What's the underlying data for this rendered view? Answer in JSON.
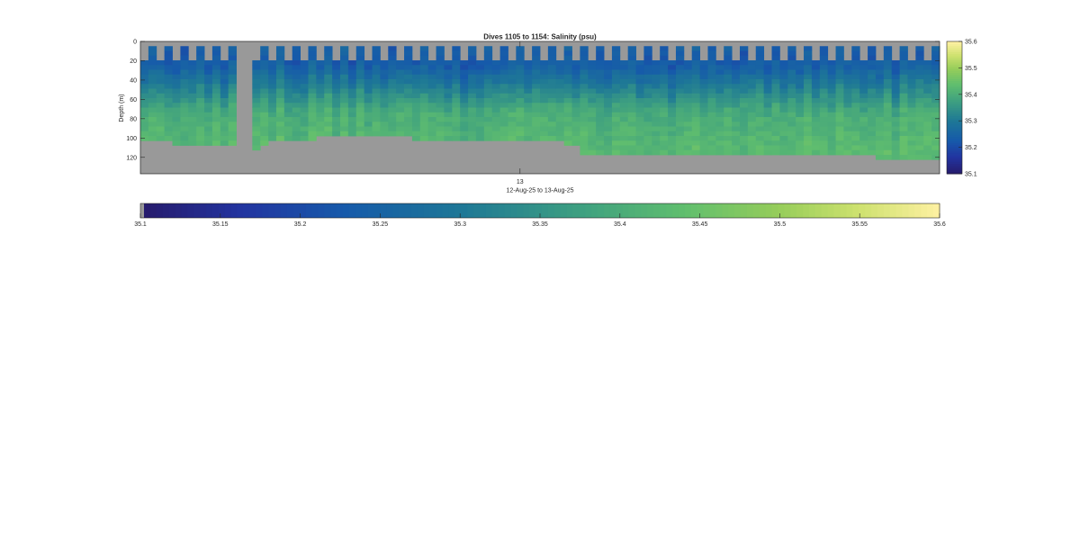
{
  "chart_data": {
    "type": "heatmap",
    "title": "Dives 1105 to 1154: Salinity (psu)",
    "ylabel": "Depth (m)",
    "xlabel": "12-Aug-25 to 13-Aug-25",
    "x_tick_labels": [
      "13"
    ],
    "y_tick_labels": [
      "0",
      "20",
      "40",
      "60",
      "80",
      "100",
      "120"
    ],
    "y_ticks": [
      0,
      20,
      40,
      60,
      80,
      100,
      120
    ],
    "ylim": [
      0,
      137
    ],
    "y_reversed": true,
    "x_cells": 100,
    "cell_depth_m": 5,
    "gap_cells": [
      12,
      13
    ],
    "colorbar": {
      "range": [
        35.1,
        35.6
      ],
      "ticks": [
        "35.1",
        "35.2",
        "35.3",
        "35.4",
        "35.5",
        "35.6"
      ],
      "colormap": "parula"
    },
    "colorbar_horizontal": {
      "ticks": [
        "35.1",
        "35.15",
        "35.2",
        "35.25",
        "35.3",
        "35.35",
        "35.4",
        "35.45",
        "35.5",
        "35.55",
        "35.6"
      ]
    },
    "nan_color": "#999999",
    "bottom_depth_m": [
      105,
      105,
      105,
      107,
      108,
      108,
      108,
      108,
      108,
      108,
      108,
      108,
      113,
      113,
      113,
      112,
      104,
      104,
      104,
      104,
      104,
      104,
      102,
      102,
      102,
      102,
      101,
      101,
      101,
      101,
      101,
      101,
      101,
      101,
      103,
      103,
      103,
      103,
      103,
      103,
      103,
      103,
      104,
      104,
      104,
      104,
      104,
      104,
      104,
      104,
      104,
      104,
      104,
      110,
      110,
      121,
      121,
      121,
      118,
      118,
      118,
      121,
      121,
      121,
      121,
      121,
      121,
      121,
      121,
      121,
      121,
      121,
      121,
      121,
      121,
      121,
      121,
      121,
      121,
      121,
      121,
      121,
      121,
      121,
      121,
      121,
      121,
      121,
      121,
      121,
      121,
      121,
      125,
      125,
      124,
      124,
      124,
      124,
      124,
      124
    ],
    "surface_top_m": [
      18,
      5,
      18,
      5,
      18,
      5,
      18,
      5,
      18,
      5,
      18,
      5,
      18,
      5,
      18,
      5,
      18,
      5,
      18,
      5,
      18,
      5,
      18,
      5,
      18,
      5,
      18,
      5,
      18,
      5,
      18,
      5,
      18,
      5,
      18,
      5,
      18,
      5,
      18,
      5,
      18,
      5,
      18,
      5,
      18,
      5,
      18,
      5,
      18,
      5,
      18,
      5,
      18,
      5,
      18,
      5,
      18,
      5,
      18,
      5,
      18,
      5,
      18,
      5,
      18,
      5,
      18,
      5,
      18,
      5,
      18,
      5,
      18,
      5,
      18,
      5,
      18,
      5,
      18,
      5,
      18,
      5,
      18,
      5,
      18,
      5,
      18,
      5,
      18,
      5,
      18,
      5,
      18,
      5,
      18,
      5,
      18,
      5,
      18,
      5
    ]
  }
}
